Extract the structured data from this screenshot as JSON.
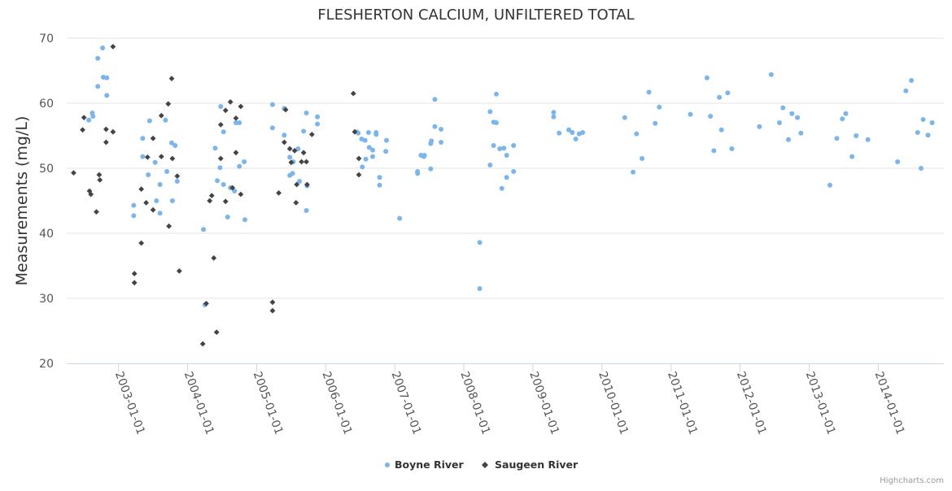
{
  "chart_data": {
    "type": "scatter",
    "title": "FLESHERTON CALCIUM, UNFILTERED TOTAL",
    "xlabel": "",
    "ylabel": "Measurements (mg/L)",
    "ylim": [
      20,
      70
    ],
    "yticks": [
      20,
      30,
      40,
      50,
      60,
      70
    ],
    "xlim": [
      2002.25,
      2014.95
    ],
    "xticks": [
      {
        "value": 2003,
        "label": "2003-01-01"
      },
      {
        "value": 2004,
        "label": "2004-01-01"
      },
      {
        "value": 2005,
        "label": "2005-01-01"
      },
      {
        "value": 2006,
        "label": "2006-01-01"
      },
      {
        "value": 2007,
        "label": "2007-01-01"
      },
      {
        "value": 2008,
        "label": "2008-01-01"
      },
      {
        "value": 2009,
        "label": "2009-01-01"
      },
      {
        "value": 2010,
        "label": "2010-01-01"
      },
      {
        "value": 2011,
        "label": "2011-01-01"
      },
      {
        "value": 2012,
        "label": "2012-01-01"
      },
      {
        "value": 2013,
        "label": "2013-01-01"
      },
      {
        "value": 2014,
        "label": "2014-01-01"
      }
    ],
    "grid": true,
    "legend_position": "bottom-center",
    "series": [
      {
        "name": "Boyne River",
        "color": "#7cb5ec",
        "marker": "circle",
        "points": [
          [
            2002.57,
            57.4
          ],
          [
            2002.62,
            58.5
          ],
          [
            2002.63,
            58.0
          ],
          [
            2002.7,
            62.6
          ],
          [
            2002.7,
            66.9
          ],
          [
            2002.77,
            68.5
          ],
          [
            2002.78,
            64.0
          ],
          [
            2002.83,
            63.9
          ],
          [
            2002.83,
            61.2
          ],
          [
            2003.22,
            44.3
          ],
          [
            2003.22,
            42.7
          ],
          [
            2003.35,
            54.6
          ],
          [
            2003.35,
            51.8
          ],
          [
            2003.43,
            49.0
          ],
          [
            2003.45,
            57.3
          ],
          [
            2003.53,
            50.9
          ],
          [
            2003.55,
            45.0
          ],
          [
            2003.6,
            47.5
          ],
          [
            2003.6,
            43.1
          ],
          [
            2003.68,
            57.4
          ],
          [
            2003.7,
            49.5
          ],
          [
            2003.77,
            53.9
          ],
          [
            2003.78,
            45.0
          ],
          [
            2003.82,
            53.5
          ],
          [
            2003.85,
            48.0
          ],
          [
            2004.23,
            40.6
          ],
          [
            2004.25,
            29.0
          ],
          [
            2004.4,
            53.1
          ],
          [
            2004.43,
            48.1
          ],
          [
            2004.47,
            50.1
          ],
          [
            2004.48,
            59.5
          ],
          [
            2004.52,
            55.6
          ],
          [
            2004.52,
            47.5
          ],
          [
            2004.58,
            42.5
          ],
          [
            2004.62,
            47.0
          ],
          [
            2004.68,
            46.5
          ],
          [
            2004.7,
            57.0
          ],
          [
            2004.75,
            57.0
          ],
          [
            2004.75,
            50.3
          ],
          [
            2004.82,
            51.0
          ],
          [
            2004.83,
            42.1
          ],
          [
            2005.23,
            59.8
          ],
          [
            2005.23,
            56.2
          ],
          [
            2005.4,
            59.2
          ],
          [
            2005.4,
            55.1
          ],
          [
            2005.48,
            51.7
          ],
          [
            2005.48,
            48.9
          ],
          [
            2005.52,
            49.2
          ],
          [
            2005.53,
            51.0
          ],
          [
            2005.6,
            53.0
          ],
          [
            2005.62,
            48.0
          ],
          [
            2005.68,
            55.7
          ],
          [
            2005.72,
            58.5
          ],
          [
            2005.72,
            43.5
          ],
          [
            2005.73,
            47.3
          ],
          [
            2005.88,
            57.9
          ],
          [
            2005.88,
            56.8
          ],
          [
            2006.45,
            55.6
          ],
          [
            2006.47,
            55.4
          ],
          [
            2006.52,
            54.5
          ],
          [
            2006.53,
            50.2
          ],
          [
            2006.57,
            54.3
          ],
          [
            2006.58,
            51.4
          ],
          [
            2006.62,
            55.5
          ],
          [
            2006.63,
            53.2
          ],
          [
            2006.68,
            51.8
          ],
          [
            2006.68,
            52.8
          ],
          [
            2006.73,
            55.2
          ],
          [
            2006.73,
            55.5
          ],
          [
            2006.78,
            48.6
          ],
          [
            2006.78,
            47.4
          ],
          [
            2006.87,
            52.6
          ],
          [
            2006.88,
            54.3
          ],
          [
            2007.07,
            42.3
          ],
          [
            2007.33,
            49.5
          ],
          [
            2007.33,
            49.2
          ],
          [
            2007.38,
            52.0
          ],
          [
            2007.42,
            51.8
          ],
          [
            2007.43,
            52.0
          ],
          [
            2007.52,
            53.8
          ],
          [
            2007.52,
            49.9
          ],
          [
            2007.53,
            54.2
          ],
          [
            2007.58,
            56.4
          ],
          [
            2007.58,
            60.6
          ],
          [
            2007.67,
            56.0
          ],
          [
            2007.67,
            54.0
          ],
          [
            2008.23,
            38.6
          ],
          [
            2008.23,
            31.5
          ],
          [
            2008.38,
            50.5
          ],
          [
            2008.38,
            58.7
          ],
          [
            2008.43,
            53.5
          ],
          [
            2008.43,
            57.1
          ],
          [
            2008.47,
            61.4
          ],
          [
            2008.47,
            57.0
          ],
          [
            2008.52,
            53.0
          ],
          [
            2008.55,
            46.9
          ],
          [
            2008.58,
            53.1
          ],
          [
            2008.62,
            48.6
          ],
          [
            2008.62,
            52.0
          ],
          [
            2008.72,
            53.5
          ],
          [
            2008.72,
            49.5
          ],
          [
            2009.3,
            58.6
          ],
          [
            2009.3,
            57.9
          ],
          [
            2009.38,
            55.4
          ],
          [
            2009.52,
            55.9
          ],
          [
            2009.57,
            55.5
          ],
          [
            2009.62,
            54.5
          ],
          [
            2009.67,
            55.3
          ],
          [
            2009.72,
            55.5
          ],
          [
            2010.33,
            57.8
          ],
          [
            2010.45,
            49.4
          ],
          [
            2010.5,
            55.3
          ],
          [
            2010.58,
            51.5
          ],
          [
            2010.68,
            61.7
          ],
          [
            2010.77,
            56.9
          ],
          [
            2010.83,
            59.4
          ],
          [
            2011.28,
            58.3
          ],
          [
            2011.52,
            63.9
          ],
          [
            2011.57,
            58.0
          ],
          [
            2011.62,
            52.7
          ],
          [
            2011.7,
            60.9
          ],
          [
            2011.73,
            55.9
          ],
          [
            2011.82,
            61.6
          ],
          [
            2011.88,
            53.0
          ],
          [
            2012.28,
            56.4
          ],
          [
            2012.45,
            64.4
          ],
          [
            2012.57,
            57.0
          ],
          [
            2012.62,
            59.3
          ],
          [
            2012.7,
            54.4
          ],
          [
            2012.75,
            58.4
          ],
          [
            2012.83,
            57.8
          ],
          [
            2012.88,
            55.4
          ],
          [
            2013.3,
            47.4
          ],
          [
            2013.4,
            54.6
          ],
          [
            2013.48,
            57.6
          ],
          [
            2013.53,
            58.4
          ],
          [
            2013.62,
            51.8
          ],
          [
            2013.68,
            55.0
          ],
          [
            2013.85,
            54.4
          ],
          [
            2014.28,
            51.0
          ],
          [
            2014.4,
            61.9
          ],
          [
            2014.48,
            63.5
          ],
          [
            2014.57,
            55.5
          ],
          [
            2014.62,
            50.0
          ],
          [
            2014.65,
            57.5
          ],
          [
            2014.72,
            55.1
          ],
          [
            2014.78,
            57.0
          ]
        ]
      },
      {
        "name": "Saugeen River",
        "color": "#434348",
        "marker": "diamond",
        "points": [
          [
            2002.35,
            49.3
          ],
          [
            2002.48,
            55.9
          ],
          [
            2002.5,
            57.8
          ],
          [
            2002.58,
            46.5
          ],
          [
            2002.6,
            46.0
          ],
          [
            2002.68,
            43.3
          ],
          [
            2002.72,
            49.0
          ],
          [
            2002.73,
            48.2
          ],
          [
            2002.82,
            56.0
          ],
          [
            2002.82,
            54.0
          ],
          [
            2002.92,
            68.7
          ],
          [
            2002.92,
            55.6
          ],
          [
            2003.23,
            33.8
          ],
          [
            2003.23,
            32.4
          ],
          [
            2003.33,
            38.5
          ],
          [
            2003.33,
            46.8
          ],
          [
            2003.4,
            44.7
          ],
          [
            2003.42,
            51.7
          ],
          [
            2003.5,
            43.6
          ],
          [
            2003.5,
            54.6
          ],
          [
            2003.62,
            58.1
          ],
          [
            2003.62,
            51.8
          ],
          [
            2003.72,
            59.9
          ],
          [
            2003.73,
            41.1
          ],
          [
            2003.77,
            63.8
          ],
          [
            2003.78,
            51.5
          ],
          [
            2003.85,
            48.8
          ],
          [
            2003.88,
            34.2
          ],
          [
            2004.22,
            23.0
          ],
          [
            2004.27,
            29.2
          ],
          [
            2004.32,
            45.0
          ],
          [
            2004.35,
            45.8
          ],
          [
            2004.38,
            36.2
          ],
          [
            2004.42,
            24.8
          ],
          [
            2004.48,
            51.5
          ],
          [
            2004.48,
            56.7
          ],
          [
            2004.55,
            44.9
          ],
          [
            2004.55,
            58.9
          ],
          [
            2004.62,
            60.2
          ],
          [
            2004.65,
            47.0
          ],
          [
            2004.7,
            52.4
          ],
          [
            2004.7,
            57.7
          ],
          [
            2004.77,
            59.5
          ],
          [
            2004.77,
            46.0
          ],
          [
            2005.23,
            29.4
          ],
          [
            2005.23,
            28.1
          ],
          [
            2005.32,
            46.2
          ],
          [
            2005.4,
            54.0
          ],
          [
            2005.42,
            59.0
          ],
          [
            2005.48,
            53.0
          ],
          [
            2005.5,
            50.9
          ],
          [
            2005.55,
            52.7
          ],
          [
            2005.57,
            44.7
          ],
          [
            2005.58,
            47.5
          ],
          [
            2005.65,
            51.0
          ],
          [
            2005.68,
            52.4
          ],
          [
            2005.72,
            51.0
          ],
          [
            2005.73,
            47.5
          ],
          [
            2005.8,
            55.2
          ],
          [
            2006.4,
            61.5
          ],
          [
            2006.42,
            55.6
          ],
          [
            2006.48,
            51.5
          ],
          [
            2006.48,
            49.0
          ]
        ]
      }
    ]
  },
  "legend": {
    "items": [
      "Boyne River",
      "Saugeen River"
    ]
  },
  "credits": "Highcharts.com"
}
